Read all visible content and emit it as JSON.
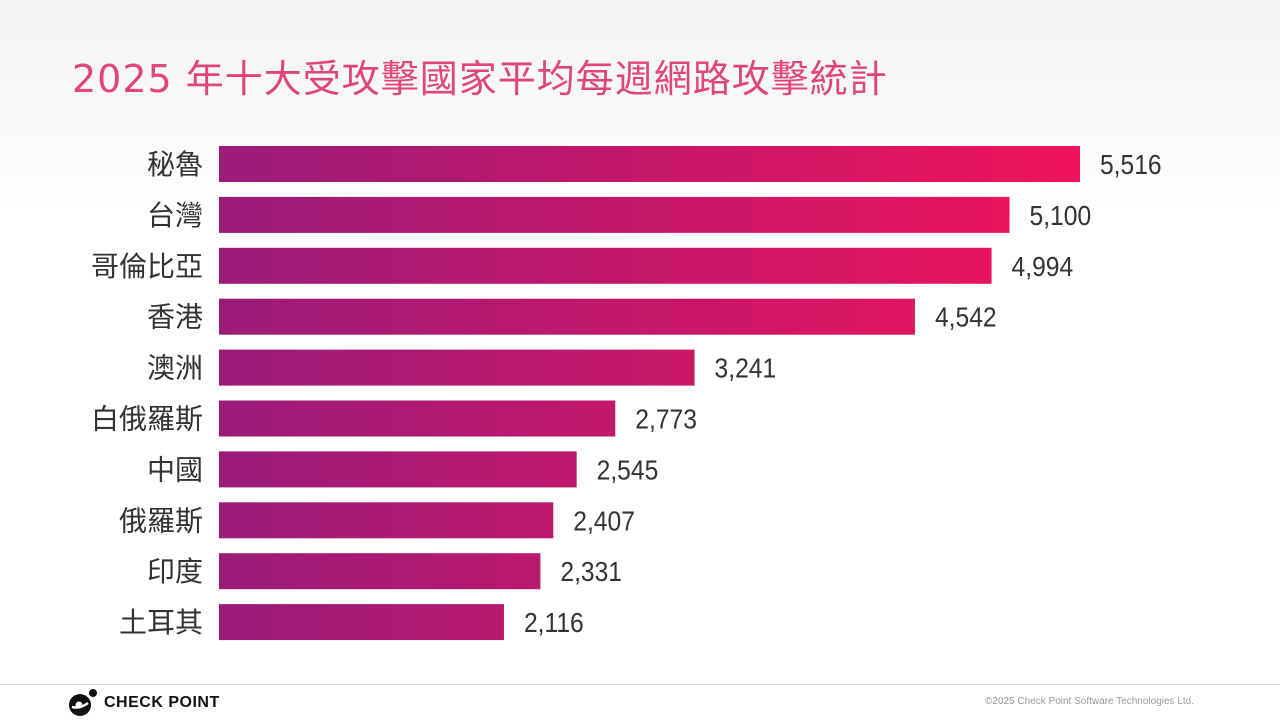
{
  "title": "2025 年十大受攻擊國家平均每週網路攻擊統計",
  "chart_data": {
    "type": "bar",
    "orientation": "horizontal",
    "title": "2025 年十大受攻擊國家平均每週網路攻擊統計",
    "categories": [
      "秘魯",
      "台灣",
      "哥倫比亞",
      "香港",
      "澳洲",
      "白俄羅斯",
      "中國",
      "俄羅斯",
      "印度",
      "土耳其"
    ],
    "values": [
      5516,
      5100,
      4994,
      4542,
      3241,
      2773,
      2545,
      2407,
      2331,
      2116
    ],
    "value_labels": [
      "5,516",
      "5,100",
      "4,994",
      "4,542",
      "3,241",
      "2,773",
      "2,545",
      "2,407",
      "2,331",
      "2,116"
    ],
    "xlim": [
      434,
      5516
    ],
    "xlabel": "",
    "ylabel": "",
    "grid": false,
    "colors": {
      "start": "#9a1c78",
      "end": "#f0135a"
    }
  },
  "footer": {
    "brand": "CHECK POINT",
    "copyright": "©2025 Check Point Software Technologies Ltd."
  }
}
